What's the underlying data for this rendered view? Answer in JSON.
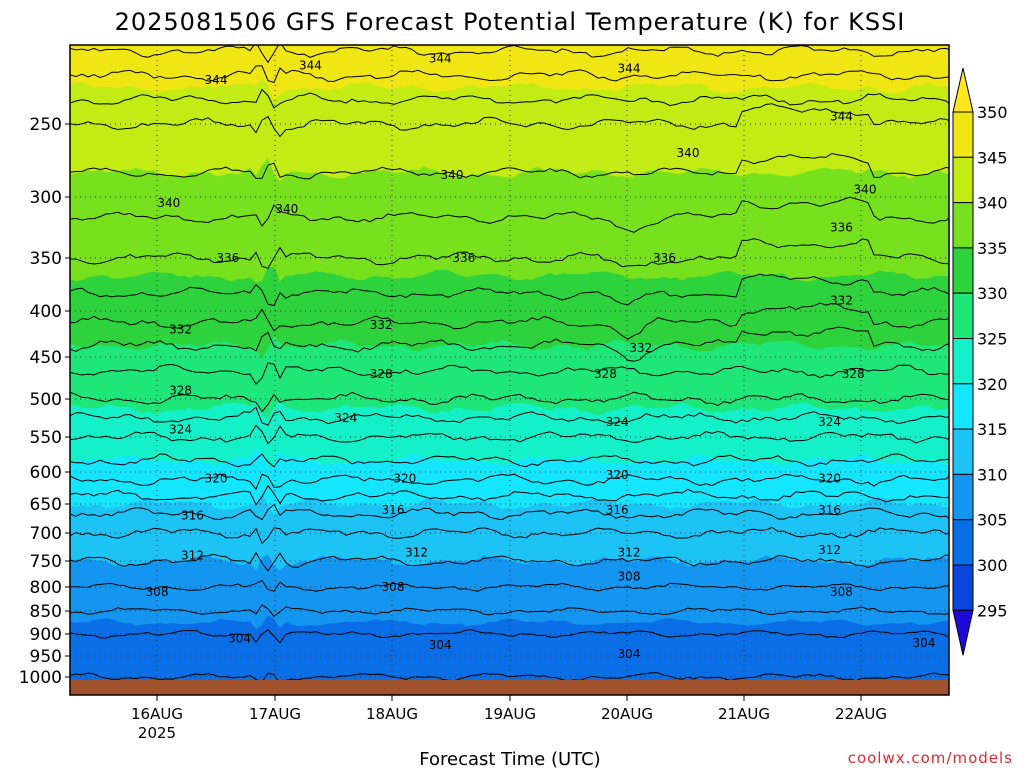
{
  "chart_data": {
    "type": "contour",
    "title": "2025081506 GFS Forecast Potential Temperature (K) for KSSI",
    "xlabel": "Forecast Time (UTC)",
    "ylabel": "",
    "credit": "coolwx.com/models",
    "y_axis": {
      "scale": "pressure",
      "ticks": [
        250,
        300,
        350,
        400,
        450,
        500,
        550,
        600,
        650,
        700,
        750,
        800,
        850,
        900,
        950,
        1000
      ],
      "range": [
        200,
        1020
      ],
      "grid": true
    },
    "x_axis": {
      "ticks": [
        {
          "label": "16AUG",
          "sublabel": "2025"
        },
        {
          "label": "17AUG",
          "sublabel": ""
        },
        {
          "label": "18AUG",
          "sublabel": ""
        },
        {
          "label": "19AUG",
          "sublabel": ""
        },
        {
          "label": "20AUG",
          "sublabel": ""
        },
        {
          "label": "21AUG",
          "sublabel": ""
        },
        {
          "label": "22AUG",
          "sublabel": ""
        }
      ],
      "grid": true
    },
    "colorbar": {
      "levels": [
        295,
        300,
        305,
        310,
        315,
        320,
        325,
        330,
        335,
        340,
        345,
        350
      ],
      "colors": [
        "#1e0ad8",
        "#0a46de",
        "#0a6ee6",
        "#1496f0",
        "#1ec3f5",
        "#14e6ff",
        "#14f0c8",
        "#1ee678",
        "#2dd23c",
        "#78e11e",
        "#c3eb14",
        "#f0e614",
        "#ffe61e"
      ]
    },
    "contour_levels": [
      300,
      302,
      304,
      306,
      308,
      310,
      312,
      314,
      316,
      318,
      320,
      322,
      324,
      326,
      328,
      330,
      332,
      334,
      336,
      338,
      340,
      342,
      344,
      346,
      348
    ],
    "profile_pressure_hpa": [
      1000,
      950,
      900,
      850,
      800,
      750,
      700,
      650,
      600,
      550,
      500,
      450,
      400,
      350,
      300,
      250,
      200
    ],
    "profile_theta_k": [
      302,
      303,
      304,
      306,
      308,
      310,
      312,
      315,
      319,
      322,
      326,
      329,
      333,
      336,
      339,
      342,
      348
    ],
    "contour_labels": [
      {
        "value": "344",
        "p": 220,
        "x": "16.5AUG"
      },
      {
        "value": "344",
        "p": 210,
        "x": "17.3AUG"
      },
      {
        "value": "344",
        "p": 205,
        "x": "18.4AUG"
      },
      {
        "value": "344",
        "p": 212,
        "x": "20.0AUG"
      },
      {
        "value": "344",
        "p": 245,
        "x": "21.8AUG"
      },
      {
        "value": "340",
        "p": 305,
        "x": "16.1AUG"
      },
      {
        "value": "340",
        "p": 310,
        "x": "17.1AUG"
      },
      {
        "value": "340",
        "p": 285,
        "x": "18.5AUG"
      },
      {
        "value": "340",
        "p": 270,
        "x": "20.5AUG"
      },
      {
        "value": "340",
        "p": 295,
        "x": "22.0AUG"
      },
      {
        "value": "336",
        "p": 350,
        "x": "16.6AUG"
      },
      {
        "value": "336",
        "p": 350,
        "x": "18.6AUG"
      },
      {
        "value": "336",
        "p": 350,
        "x": "20.3AUG"
      },
      {
        "value": "336",
        "p": 325,
        "x": "21.8AUG"
      },
      {
        "value": "332",
        "p": 420,
        "x": "16.2AUG"
      },
      {
        "value": "332",
        "p": 415,
        "x": "17.9AUG"
      },
      {
        "value": "332",
        "p": 440,
        "x": "20.1AUG"
      },
      {
        "value": "332",
        "p": 390,
        "x": "21.8AUG"
      },
      {
        "value": "328",
        "p": 490,
        "x": "16.2AUG"
      },
      {
        "value": "328",
        "p": 470,
        "x": "17.9AUG"
      },
      {
        "value": "328",
        "p": 470,
        "x": "19.8AUG"
      },
      {
        "value": "328",
        "p": 470,
        "x": "21.9AUG"
      },
      {
        "value": "324",
        "p": 540,
        "x": "16.2AUG"
      },
      {
        "value": "324",
        "p": 525,
        "x": "17.6AUG"
      },
      {
        "value": "324",
        "p": 530,
        "x": "19.9AUG"
      },
      {
        "value": "324",
        "p": 530,
        "x": "21.7AUG"
      },
      {
        "value": "320",
        "p": 610,
        "x": "16.5AUG"
      },
      {
        "value": "320",
        "p": 610,
        "x": "18.1AUG"
      },
      {
        "value": "320",
        "p": 605,
        "x": "19.9AUG"
      },
      {
        "value": "320",
        "p": 610,
        "x": "21.7AUG"
      },
      {
        "value": "316",
        "p": 670,
        "x": "16.3AUG"
      },
      {
        "value": "316",
        "p": 660,
        "x": "18.0AUG"
      },
      {
        "value": "316",
        "p": 660,
        "x": "19.9AUG"
      },
      {
        "value": "316",
        "p": 660,
        "x": "21.7AUG"
      },
      {
        "value": "312",
        "p": 740,
        "x": "16.3AUG"
      },
      {
        "value": "312",
        "p": 735,
        "x": "18.2AUG"
      },
      {
        "value": "312",
        "p": 735,
        "x": "20.0AUG"
      },
      {
        "value": "312",
        "p": 730,
        "x": "21.7AUG"
      },
      {
        "value": "308",
        "p": 810,
        "x": "16.0AUG"
      },
      {
        "value": "308",
        "p": 800,
        "x": "18.0AUG"
      },
      {
        "value": "308",
        "p": 780,
        "x": "20.0AUG"
      },
      {
        "value": "308",
        "p": 810,
        "x": "21.8AUG"
      },
      {
        "value": "304",
        "p": 910,
        "x": "16.7AUG"
      },
      {
        "value": "304",
        "p": 925,
        "x": "18.4AUG"
      },
      {
        "value": "304",
        "p": 945,
        "x": "20.0AUG"
      },
      {
        "value": "304",
        "p": 920,
        "x": "22.5AUG"
      }
    ]
  }
}
